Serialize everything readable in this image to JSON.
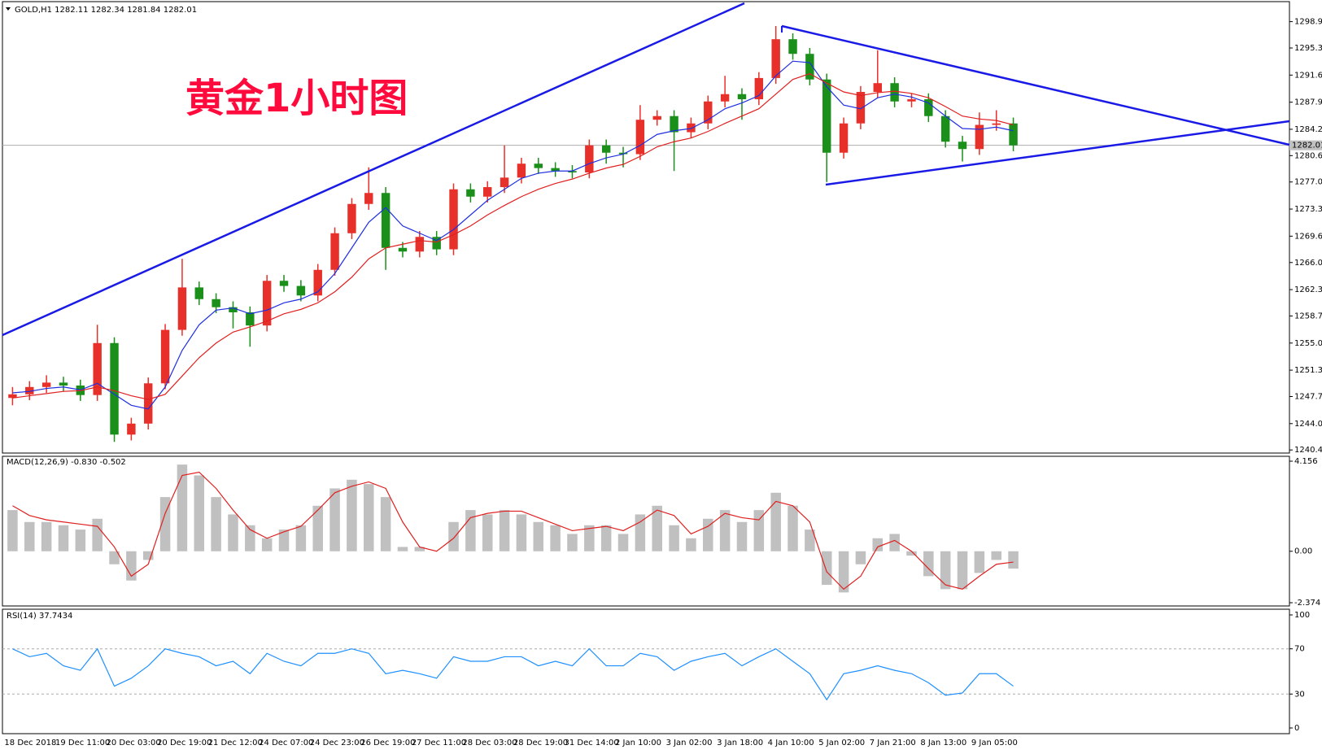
{
  "chart_data": [
    {
      "type": "candlestick",
      "title": "黄金1小时图",
      "header": "GOLD,H1  1282.11 1282.34 1281.84 1282.01",
      "categories": [
        "18 Dec 2018",
        null,
        null,
        "19 Dec 11:00",
        null,
        null,
        "20 Dec 03:00",
        null,
        null,
        "20 Dec 19:00",
        null,
        null,
        "21 Dec 12:00",
        null,
        null,
        "24 Dec 07:00",
        null,
        null,
        "24 Dec 23:00",
        null,
        null,
        "26 Dec 19:00",
        null,
        null,
        "27 Dec 11:00",
        null,
        null,
        "28 Dec 03:00",
        null,
        null,
        "28 Dec 19:00",
        null,
        null,
        "31 Dec 14:00",
        null,
        null,
        "2 Jan 10:00",
        null,
        null,
        "3 Jan 02:00",
        null,
        null,
        "3 Jan 18:00",
        null,
        null,
        "4 Jan 10:00",
        null,
        null,
        "5 Jan 02:00",
        null,
        null,
        "7 Jan 21:00",
        null,
        null,
        "8 Jan 13:00",
        null,
        null,
        "9 Jan 05:00",
        null,
        null
      ],
      "ohlc": [
        [
          1247.5,
          1249.0,
          1246.5,
          1248.0
        ],
        [
          1248.0,
          1249.8,
          1247.2,
          1249.0
        ],
        [
          1249.0,
          1250.6,
          1248.2,
          1249.6
        ],
        [
          1249.6,
          1250.4,
          1248.4,
          1249.2
        ],
        [
          1249.2,
          1250.0,
          1247.1,
          1247.9
        ],
        [
          1247.9,
          1257.5,
          1247.1,
          1255.0
        ],
        [
          1255.0,
          1255.8,
          1241.5,
          1242.5
        ],
        [
          1242.5,
          1244.8,
          1241.7,
          1244.0
        ],
        [
          1244.0,
          1250.3,
          1243.2,
          1249.5
        ],
        [
          1249.5,
          1257.6,
          1248.7,
          1256.8
        ],
        [
          1256.8,
          1266.5,
          1256.0,
          1262.6
        ],
        [
          1262.6,
          1263.4,
          1260.2,
          1261.0
        ],
        [
          1261.0,
          1261.8,
          1259.1,
          1259.9
        ],
        [
          1259.9,
          1260.7,
          1257.0,
          1259.2
        ],
        [
          1259.2,
          1260.0,
          1254.5,
          1257.4
        ],
        [
          1257.4,
          1264.3,
          1256.6,
          1263.5
        ],
        [
          1263.5,
          1264.3,
          1262.0,
          1262.8
        ],
        [
          1262.8,
          1263.6,
          1260.7,
          1261.5
        ],
        [
          1261.5,
          1265.8,
          1260.7,
          1265.0
        ],
        [
          1265.0,
          1270.8,
          1264.2,
          1270.0
        ],
        [
          1270.0,
          1274.8,
          1269.2,
          1274.0
        ],
        [
          1274.0,
          1279.0,
          1273.2,
          1275.5
        ],
        [
          1275.5,
          1276.3,
          1265.0,
          1268.0
        ],
        [
          1268.0,
          1268.8,
          1266.7,
          1267.5
        ],
        [
          1267.5,
          1270.3,
          1266.7,
          1269.5
        ],
        [
          1269.5,
          1270.3,
          1267.0,
          1267.8
        ],
        [
          1267.8,
          1276.8,
          1267.0,
          1276.0
        ],
        [
          1276.0,
          1276.8,
          1274.2,
          1275.0
        ],
        [
          1275.0,
          1277.1,
          1274.2,
          1276.3
        ],
        [
          1276.3,
          1282.0,
          1275.5,
          1277.6
        ],
        [
          1277.6,
          1280.3,
          1276.8,
          1279.5
        ],
        [
          1279.5,
          1280.3,
          1278.1,
          1278.9
        ],
        [
          1278.9,
          1279.7,
          1277.7,
          1278.5
        ],
        [
          1278.5,
          1279.3,
          1277.5,
          1278.3
        ],
        [
          1278.3,
          1282.8,
          1277.5,
          1282.0
        ],
        [
          1282.0,
          1282.8,
          1279.5,
          1281.0
        ],
        [
          1281.0,
          1281.8,
          1279.0,
          1280.8
        ],
        [
          1280.8,
          1287.5,
          1280.0,
          1285.5
        ],
        [
          1285.5,
          1286.8,
          1284.7,
          1286.0
        ],
        [
          1286.0,
          1286.8,
          1278.5,
          1283.8
        ],
        [
          1283.8,
          1285.8,
          1283.0,
          1285.0
        ],
        [
          1285.0,
          1288.8,
          1284.2,
          1288.0
        ],
        [
          1288.0,
          1291.5,
          1287.2,
          1289.0
        ],
        [
          1289.0,
          1289.8,
          1285.5,
          1288.3
        ],
        [
          1288.3,
          1292.0,
          1287.5,
          1291.2
        ],
        [
          1291.2,
          1298.3,
          1290.4,
          1296.5
        ],
        [
          1296.5,
          1297.3,
          1293.7,
          1294.5
        ],
        [
          1294.5,
          1295.3,
          1290.2,
          1291.0
        ],
        [
          1291.0,
          1291.8,
          1277.0,
          1281.0
        ],
        [
          1281.0,
          1285.8,
          1280.2,
          1285.0
        ],
        [
          1285.0,
          1290.1,
          1284.2,
          1289.3
        ],
        [
          1289.3,
          1295.0,
          1288.5,
          1290.5
        ],
        [
          1290.5,
          1291.3,
          1287.2,
          1288.0
        ],
        [
          1288.0,
          1289.1,
          1287.2,
          1288.3
        ],
        [
          1288.3,
          1289.1,
          1285.2,
          1286.0
        ],
        [
          1286.0,
          1286.8,
          1281.7,
          1282.5
        ],
        [
          1282.5,
          1283.3,
          1279.8,
          1281.5
        ],
        [
          1281.5,
          1286.5,
          1280.7,
          1284.8
        ],
        [
          1284.8,
          1286.8,
          1284.0,
          1285.0
        ],
        [
          1285.0,
          1285.8,
          1281.2,
          1282.0
        ]
      ],
      "up_color": "#e8302a",
      "down_color": "#1a8f1a",
      "series": [
        {
          "color": "#1f2fe0",
          "values": [
            1248.2,
            1248.4,
            1248.8,
            1249.0,
            1248.6,
            1249.5,
            1248.0,
            1246.5,
            1246.0,
            1249.0,
            1254.0,
            1257.5,
            1259.5,
            1259.8,
            1259.0,
            1259.5,
            1260.5,
            1261.0,
            1262.0,
            1264.5,
            1268.0,
            1271.5,
            1273.5,
            1271.0,
            1270.0,
            1269.0,
            1270.5,
            1272.5,
            1274.5,
            1276.0,
            1277.5,
            1278.2,
            1278.5,
            1278.5,
            1279.5,
            1280.3,
            1280.8,
            1282.0,
            1283.5,
            1284.0,
            1284.3,
            1285.5,
            1287.0,
            1287.8,
            1288.8,
            1291.5,
            1293.5,
            1293.3,
            1290.0,
            1287.5,
            1287.0,
            1288.5,
            1289.0,
            1288.6,
            1287.8,
            1286.0,
            1284.3,
            1284.2,
            1284.5,
            1284.0
          ]
        },
        {
          "color": "#e02020",
          "values": [
            1247.5,
            1247.8,
            1248.1,
            1248.4,
            1248.5,
            1249.0,
            1248.5,
            1247.8,
            1247.3,
            1248.0,
            1250.5,
            1253.0,
            1255.0,
            1256.5,
            1257.2,
            1258.0,
            1259.0,
            1259.6,
            1260.5,
            1262.0,
            1264.0,
            1266.5,
            1268.0,
            1268.5,
            1269.0,
            1268.8,
            1269.8,
            1271.0,
            1272.5,
            1273.8,
            1275.0,
            1276.0,
            1276.8,
            1277.4,
            1278.2,
            1278.9,
            1279.4,
            1280.5,
            1281.8,
            1282.5,
            1283.0,
            1283.9,
            1285.0,
            1286.0,
            1287.0,
            1289.0,
            1291.0,
            1291.8,
            1290.5,
            1289.3,
            1288.8,
            1289.2,
            1289.4,
            1289.1,
            1288.5,
            1287.3,
            1286.0,
            1285.6,
            1285.4,
            1284.8
          ]
        }
      ],
      "current_price": 1282.01,
      "ylim": [
        1240.2,
        1301.3
      ],
      "yticks": [
        {
          "value": 1298.9,
          "label": "1298.90"
        },
        {
          "value": 1295.3,
          "label": "1295.30"
        },
        {
          "value": 1291.6,
          "label": "1291.60"
        },
        {
          "value": 1287.9,
          "label": "1287.90"
        },
        {
          "value": 1284.2,
          "label": "1284.20"
        },
        {
          "value": 1280.6,
          "label": "1280.60"
        },
        {
          "value": 1277,
          "label": "1277.00"
        },
        {
          "value": 1273.3,
          "label": "1273.30"
        },
        {
          "value": 1269.6,
          "label": "1269.60"
        },
        {
          "value": 1266,
          "label": "1266.00"
        },
        {
          "value": 1262.3,
          "label": "1262.30"
        },
        {
          "value": 1258.7,
          "label": "1258.70"
        },
        {
          "value": 1255,
          "label": "1255.00"
        },
        {
          "value": 1251.3,
          "label": "1251.30"
        },
        {
          "value": 1247.7,
          "label": "1247.70"
        },
        {
          "value": 1244,
          "label": "1244.00"
        },
        {
          "value": 1240.4,
          "label": "1240.40"
        }
      ]
    },
    {
      "type": "macd",
      "title": "MACD(12,26,9) -0.830 -0.502",
      "values": [
        1.9,
        1.35,
        1.35,
        1.2,
        1.0,
        1.5,
        -0.6,
        -1.35,
        -0.4,
        2.5,
        4.0,
        3.5,
        2.5,
        1.7,
        1.2,
        0.6,
        1.0,
        1.2,
        2.1,
        2.9,
        3.3,
        3.1,
        2.5,
        0.2,
        0.2,
        0,
        1.35,
        1.9,
        1.7,
        1.9,
        1.7,
        1.35,
        1.2,
        0.8,
        1.2,
        1.2,
        0.8,
        1.7,
        2.1,
        1.2,
        0.6,
        1.5,
        1.9,
        1.35,
        1.9,
        2.7,
        2.1,
        1.0,
        -1.55,
        -1.9,
        -0.6,
        0.6,
        0.8,
        -0.2,
        -1.15,
        -1.75,
        -1.75,
        -1.0,
        -0.4,
        -0.8
      ],
      "color": "#c0c0c0",
      "signal": [
        2.1,
        1.65,
        1.45,
        1.35,
        1.25,
        1.15,
        0.2,
        -1.15,
        -0.6,
        1.75,
        3.5,
        3.65,
        2.9,
        1.9,
        1.0,
        0.6,
        0.9,
        1.15,
        1.9,
        2.7,
        3.0,
        3.2,
        2.9,
        1.35,
        0.2,
        0.0,
        0.6,
        1.55,
        1.75,
        1.85,
        1.85,
        1.55,
        1.25,
        0.95,
        1.05,
        1.15,
        0.95,
        1.35,
        1.9,
        1.65,
        0.8,
        1.15,
        1.75,
        1.55,
        1.45,
        2.3,
        2.1,
        1.35,
        -0.95,
        -1.75,
        -1.15,
        0.2,
        0.5,
        0.0,
        -0.8,
        -1.55,
        -1.75,
        -1.15,
        -0.6,
        -0.5
      ],
      "signal_color": "#e02020",
      "ylim": [
        -2.374,
        4.156
      ],
      "yticks": [
        4.156,
        {
          "value": 0,
          "label": "0.00"
        },
        -2.374
      ]
    },
    {
      "type": "line",
      "title": "RSI(14) 37.7434",
      "values": [
        70,
        63,
        66,
        55,
        51,
        70,
        37,
        44,
        55,
        70,
        66,
        63,
        55,
        59,
        48,
        66,
        59,
        55,
        66,
        66,
        70,
        66,
        48,
        51,
        48,
        44,
        63,
        59,
        59,
        63,
        63,
        55,
        59,
        55,
        70,
        55,
        55,
        66,
        63,
        51,
        59,
        63,
        66,
        55,
        63,
        70,
        59,
        48,
        25,
        48,
        51,
        55,
        51,
        48,
        40,
        29,
        31,
        48,
        48,
        37
      ],
      "color": "#1e90ff",
      "ylim": [
        0,
        100
      ],
      "yticks": [
        100,
        70,
        30,
        0
      ]
    }
  ]
}
